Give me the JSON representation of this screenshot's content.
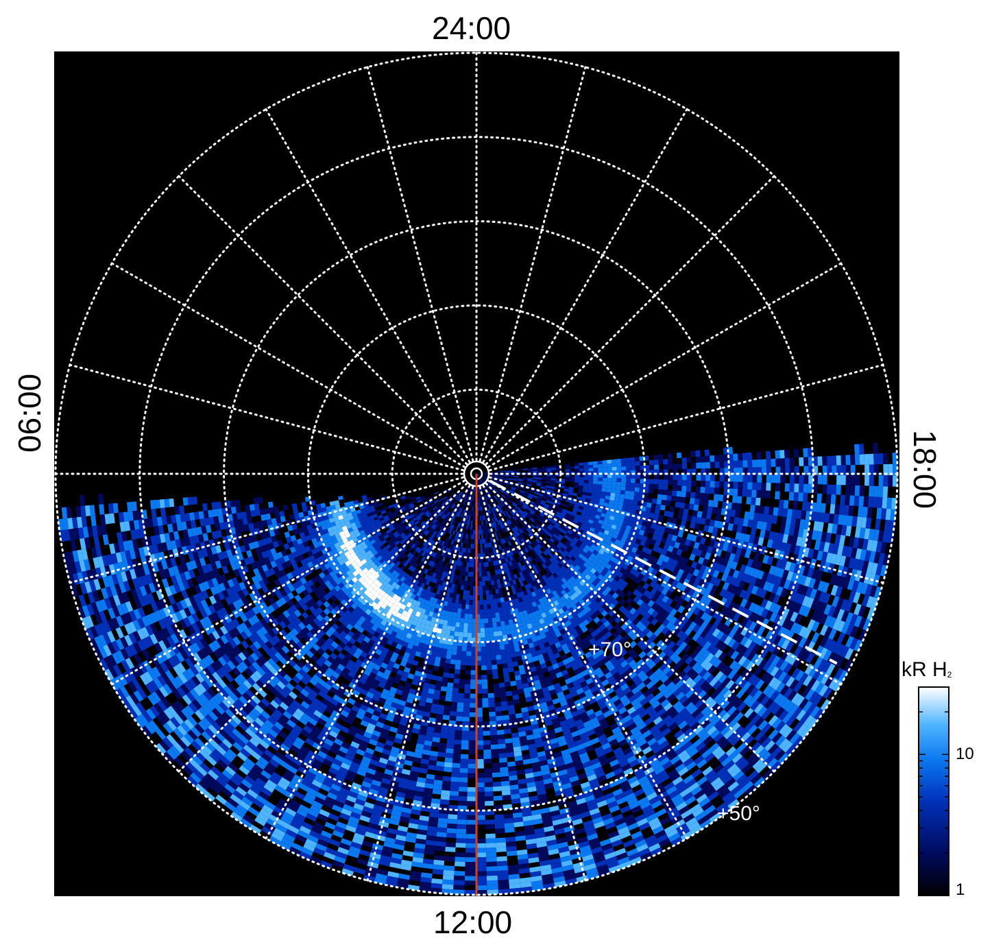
{
  "chart_data": {
    "type": "heatmap",
    "projection": "polar",
    "title": "",
    "local_time_labels": {
      "top": "24:00",
      "bottom": "12:00",
      "left": "06:00",
      "right": "18:00"
    },
    "latitude_labels": [
      "+70°",
      "+50°"
    ],
    "latitude_circles_deg": [
      80,
      70,
      60,
      50,
      40
    ],
    "longitude_lines_every_hours": 1,
    "colorbar": {
      "title": "kR H",
      "title_subscript": "2",
      "scale": "log",
      "range": [
        1,
        30
      ],
      "ticks": [
        "10",
        "1"
      ],
      "colormap": [
        "#000000",
        "#000a5c",
        "#0030b8",
        "#0a78f0",
        "#4fb4ff",
        "#ffffff"
      ]
    },
    "emission": {
      "coverage": "dayside hemisphere (about 06:00 through 12:00 to 18:00)",
      "main_oval_brightest_near": "09:00-10:00 local time",
      "max_kR": 30
    },
    "overlays": [
      {
        "type": "meridian line",
        "color": "#d2411c",
        "local_time": "12:00"
      },
      {
        "type": "dashed line",
        "color": "#ffffff",
        "local_time": "about 16:10"
      }
    ]
  },
  "colors": {
    "background": "#000000",
    "grid": "#ffffff",
    "meridian": "#d2411c"
  }
}
